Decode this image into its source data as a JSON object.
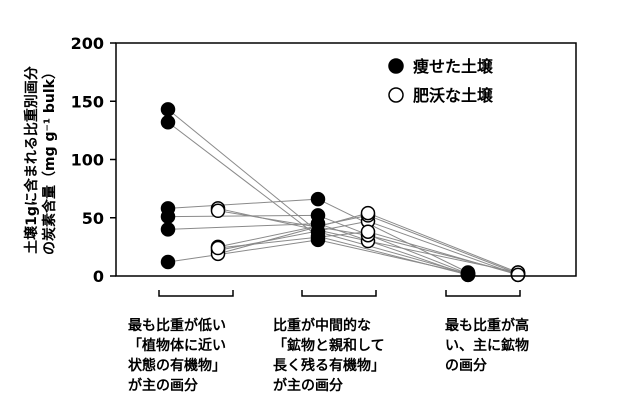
{
  "chart_data": {
    "type": "scatter",
    "ylabel_line1": "土壌1gに含まれる比重別画分",
    "ylabel_line2": "の炭素含量（mg g⁻¹ bulk）",
    "ylim": [
      0,
      200
    ],
    "yticks": [
      0,
      50,
      100,
      150,
      200
    ],
    "categories": [
      [
        "最も比重が低い",
        "「植物体に近い",
        "状態の有機物」",
        "が主の画分"
      ],
      [
        "比重が中間的な",
        "「鉱物と親和して",
        "長く残る有機物」",
        "が主の画分"
      ],
      [
        "最も比重が高",
        "い、主に鉱物",
        "の画分"
      ]
    ],
    "series": [
      {
        "name": "痩せた土壌",
        "fill": "#000000"
      },
      {
        "name": "肥沃な土壌",
        "fill": "#ffffff"
      }
    ],
    "soils": [
      {
        "poor": [
          143,
          38,
          2
        ],
        "fertile": [
          22,
          47,
          1
        ]
      },
      {
        "poor": [
          132,
          34,
          1
        ],
        "fertile": [
          25,
          52,
          2
        ]
      },
      {
        "poor": [
          58,
          66,
          3
        ],
        "fertile": [
          58,
          30,
          3
        ]
      },
      {
        "poor": [
          51,
          52,
          2
        ],
        "fertile": [
          56,
          35,
          2
        ]
      },
      {
        "poor": [
          40,
          45,
          1
        ],
        "fertile": [
          19,
          54,
          3
        ]
      },
      {
        "poor": [
          12,
          31,
          2
        ],
        "fertile": [
          24,
          38,
          1
        ]
      }
    ],
    "legend_position": "top-right",
    "grid": false
  }
}
